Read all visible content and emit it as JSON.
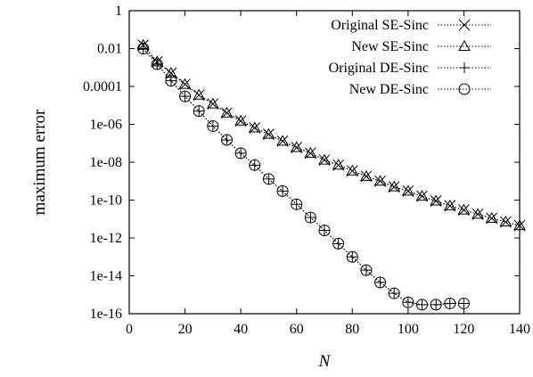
{
  "chart_data": {
    "type": "line",
    "xlabel": "N",
    "ylabel": "maximum error",
    "xlim": [
      0,
      140
    ],
    "ylim": [
      1e-16,
      1
    ],
    "yscale": "log",
    "x_ticks": [
      0,
      20,
      40,
      60,
      80,
      100,
      120,
      140
    ],
    "x_tick_labels": [
      "0",
      "20",
      "40",
      "60",
      "80",
      "100",
      "120",
      "140"
    ],
    "y_ticks": [
      1,
      0.01,
      0.0001,
      1e-06,
      1e-08,
      1e-10,
      1e-12,
      1e-14,
      1e-16
    ],
    "y_tick_labels": [
      "1",
      "0.01",
      "0.0001",
      "1e-06",
      "1e-08",
      "1e-10",
      "1e-12",
      "1e-14",
      "1e-16"
    ],
    "grid": false,
    "legend_position": "top-right",
    "series": [
      {
        "name": "Original SE-Sinc",
        "marker": "x",
        "x": [
          5,
          10,
          15,
          20,
          25,
          30,
          35,
          40,
          45,
          50,
          55,
          60,
          65,
          70,
          75,
          80,
          85,
          90,
          95,
          100,
          105,
          110,
          115,
          120,
          125,
          130,
          135,
          140
        ],
        "y": [
          0.015,
          0.002,
          0.0005,
          0.00013,
          3.5e-05,
          1.2e-05,
          4e-06,
          1.5e-06,
          6.5e-07,
          3e-07,
          1.3e-07,
          6e-08,
          3e-08,
          1.3e-08,
          7e-09,
          3.5e-09,
          1.8e-09,
          1e-09,
          5e-10,
          3e-10,
          1.6e-10,
          9e-11,
          5e-11,
          3e-11,
          1.8e-11,
          1.1e-11,
          7e-12,
          4.5e-12
        ]
      },
      {
        "name": "New SE-Sinc",
        "marker": "triangle",
        "x": [
          5,
          10,
          15,
          20,
          25,
          30,
          35,
          40,
          45,
          50,
          55,
          60,
          65,
          70,
          75,
          80,
          85,
          90,
          95,
          100,
          105,
          110,
          115,
          120,
          125,
          130,
          135,
          140
        ],
        "y": [
          0.015,
          0.002,
          0.0005,
          0.00013,
          3.5e-05,
          1.2e-05,
          4e-06,
          1.5e-06,
          6.5e-07,
          3e-07,
          1.3e-07,
          6e-08,
          3e-08,
          1.3e-08,
          7e-09,
          3.5e-09,
          1.8e-09,
          1e-09,
          5e-10,
          3e-10,
          1.6e-10,
          9e-11,
          5e-11,
          3e-11,
          1.8e-11,
          1.1e-11,
          7e-12,
          4.5e-12
        ]
      },
      {
        "name": "Original DE-Sinc",
        "marker": "plus",
        "x": [
          5,
          10,
          15,
          20,
          25,
          30,
          35,
          40,
          45,
          50,
          55,
          60,
          65,
          70,
          75,
          80,
          85,
          90,
          95,
          100,
          105,
          110,
          115,
          120
        ],
        "y": [
          0.01,
          0.0015,
          0.0002,
          3e-05,
          5e-06,
          8e-07,
          1.5e-07,
          3e-08,
          7e-09,
          1.3e-09,
          3e-10,
          6e-11,
          1.2e-11,
          2.5e-12,
          5e-13,
          1e-13,
          2e-14,
          4.5e-15,
          1.2e-15,
          4e-16,
          3e-16,
          3e-16,
          3.5e-16,
          3.5e-16
        ]
      },
      {
        "name": "New DE-Sinc",
        "marker": "circle",
        "x": [
          5,
          10,
          15,
          20,
          25,
          30,
          35,
          40,
          45,
          50,
          55,
          60,
          65,
          70,
          75,
          80,
          85,
          90,
          95,
          100,
          105,
          110,
          115,
          120
        ],
        "y": [
          0.01,
          0.0015,
          0.0002,
          3e-05,
          5e-06,
          8e-07,
          1.5e-07,
          3e-08,
          7e-09,
          1.3e-09,
          3e-10,
          6e-11,
          1.2e-11,
          2.5e-12,
          5e-13,
          1e-13,
          2e-14,
          4.5e-15,
          1.2e-15,
          4e-16,
          3e-16,
          3e-16,
          3.5e-16,
          3.5e-16
        ]
      }
    ]
  }
}
